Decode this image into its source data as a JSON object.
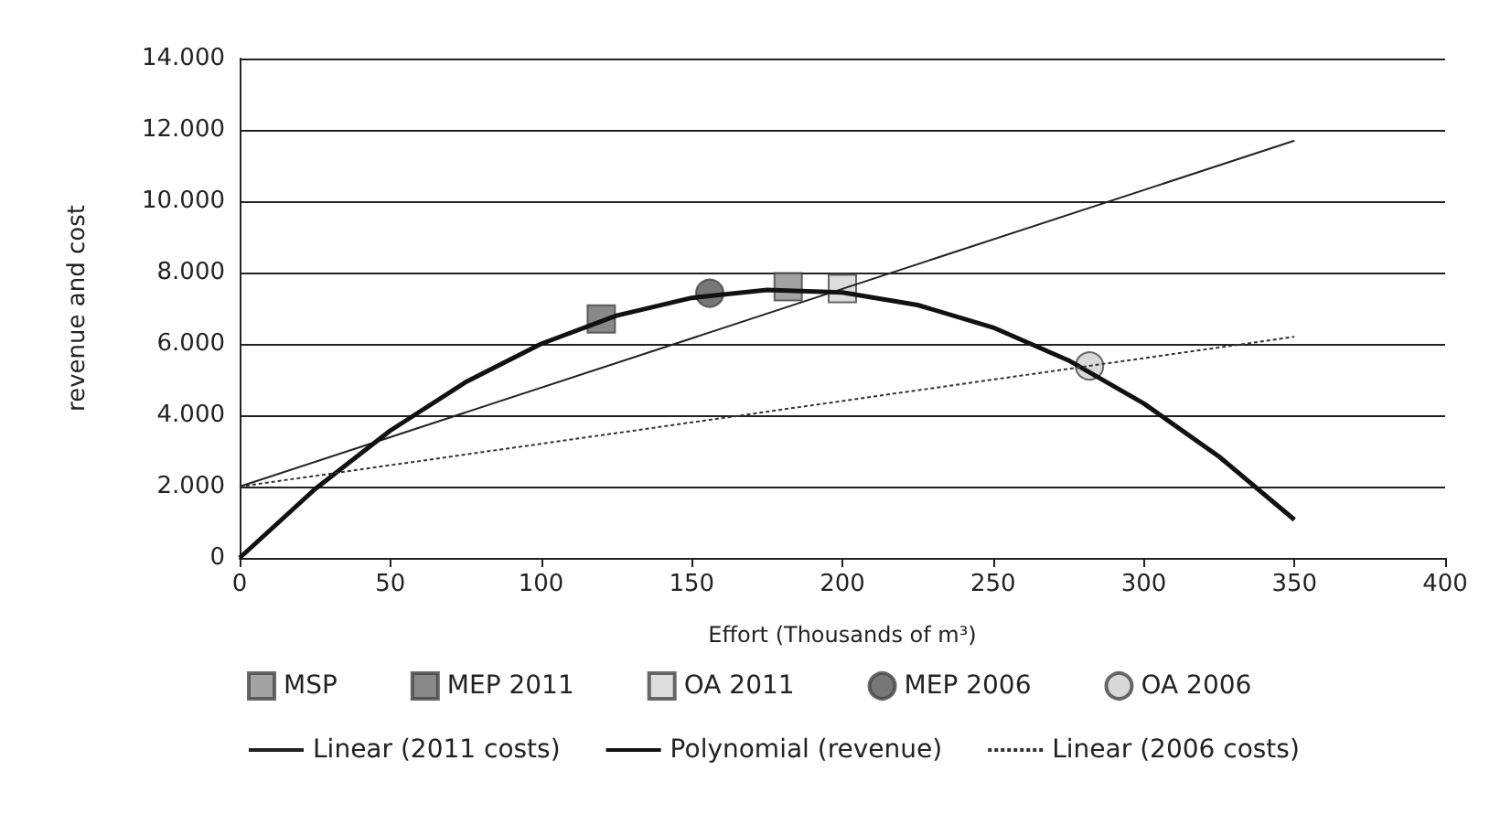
{
  "chart_data": {
    "type": "scatter",
    "xlabel": "Effort (Thousands of m³)",
    "ylabel": "revenue and cost",
    "xlim": [
      0,
      400
    ],
    "xticks": [
      0,
      50,
      100,
      150,
      200,
      250,
      300,
      350,
      400
    ],
    "ylim": [
      0,
      14000
    ],
    "yticks": [
      {
        "value": 0,
        "label": "0"
      },
      {
        "value": 2000,
        "label": "2.000"
      },
      {
        "value": 4000,
        "label": "4.000"
      },
      {
        "value": 6000,
        "label": "6.000"
      },
      {
        "value": 8000,
        "label": "8.000"
      },
      {
        "value": 10000,
        "label": "10.000"
      },
      {
        "value": 12000,
        "label": "12.000"
      },
      {
        "value": 14000,
        "label": "14.000"
      }
    ],
    "grid": "y",
    "legend": "bottom",
    "series": [
      {
        "name": "MSP",
        "marker": "square",
        "color": "#8c8c8c",
        "x": [
          182
        ],
        "values": [
          7600
        ]
      },
      {
        "name": "MEP 2011",
        "marker": "square",
        "color": "#6b6b6b",
        "x": [
          120
        ],
        "values": [
          6700
        ]
      },
      {
        "name": "OA 2011",
        "marker": "square",
        "color": "#d4d4d4",
        "x": [
          200
        ],
        "values": [
          7550
        ]
      },
      {
        "name": "MEP 2006",
        "marker": "circle",
        "color": "#555555",
        "x": [
          156
        ],
        "values": [
          7420
        ]
      },
      {
        "name": "OA 2006",
        "marker": "circle",
        "color": "#cfcfcf",
        "x": [
          282
        ],
        "values": [
          5380
        ]
      },
      {
        "name": "Linear (2011 costs)",
        "type": "line",
        "marker": "none",
        "line_style": "solid",
        "color": "#222222",
        "x": [
          0,
          350
        ],
        "values": [
          2000,
          11700
        ]
      },
      {
        "name": "Polynomial (revenue)",
        "type": "line",
        "marker": "none",
        "line_style": "solid",
        "color": "#111111",
        "x": [
          0,
          25,
          50,
          75,
          100,
          125,
          150,
          175,
          200,
          225,
          250,
          275,
          300,
          325,
          350
        ],
        "values": [
          0,
          1930,
          3570,
          4930,
          6000,
          6790,
          7290,
          7510,
          7440,
          7090,
          6460,
          5540,
          4330,
          2840,
          1070
        ]
      },
      {
        "name": "Linear (2006 costs)",
        "type": "line",
        "marker": "none",
        "line_style": "dotted",
        "color": "#333333",
        "x": [
          0,
          350
        ],
        "values": [
          2000,
          6200
        ]
      }
    ]
  }
}
